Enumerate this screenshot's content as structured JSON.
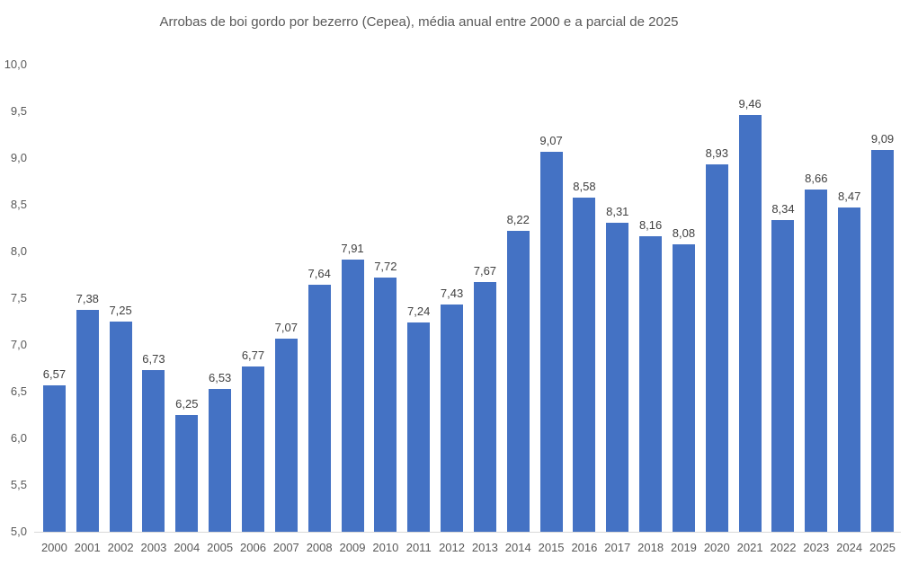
{
  "chart_data": {
    "type": "bar",
    "title": "Arrobas de boi gordo por bezerro (Cepea), média anual entre 2000 e a parcial de 2025",
    "categories": [
      "2000",
      "2001",
      "2002",
      "2003",
      "2004",
      "2005",
      "2006",
      "2007",
      "2008",
      "2009",
      "2010",
      "2011",
      "2012",
      "2013",
      "2014",
      "2015",
      "2016",
      "2017",
      "2018",
      "2019",
      "2020",
      "2021",
      "2022",
      "2023",
      "2024",
      "2025"
    ],
    "values": [
      6.57,
      7.38,
      7.25,
      6.73,
      6.25,
      6.53,
      6.77,
      7.07,
      7.64,
      7.91,
      7.72,
      7.24,
      7.43,
      7.67,
      8.22,
      9.07,
      8.58,
      8.31,
      8.16,
      8.08,
      8.93,
      9.46,
      8.34,
      8.66,
      8.47,
      9.09
    ],
    "value_labels": [
      "6,57",
      "7,38",
      "7,25",
      "6,73",
      "6,25",
      "6,53",
      "6,77",
      "7,07",
      "7,64",
      "7,91",
      "7,72",
      "7,24",
      "7,43",
      "7,67",
      "8,22",
      "9,07",
      "8,58",
      "8,31",
      "8,16",
      "8,08",
      "8,93",
      "9,46",
      "8,34",
      "8,66",
      "8,47",
      "9,09"
    ],
    "xlabel": "",
    "ylabel": "",
    "ylim": [
      5.0,
      10.0
    ],
    "ytick_labels": [
      "10,0",
      "9,5",
      "9,0",
      "8,5",
      "8,0",
      "7,5",
      "7,0",
      "6,5",
      "6,0",
      "5,5",
      "5,0"
    ],
    "grid": false,
    "legend_position": "none",
    "colors": {
      "bar": "#4472C4",
      "title_text": "#595959",
      "axis_tick_text": "#595959",
      "value_label_text": "#404040",
      "axis_line": "#d9d9d9",
      "background": "#ffffff"
    }
  }
}
